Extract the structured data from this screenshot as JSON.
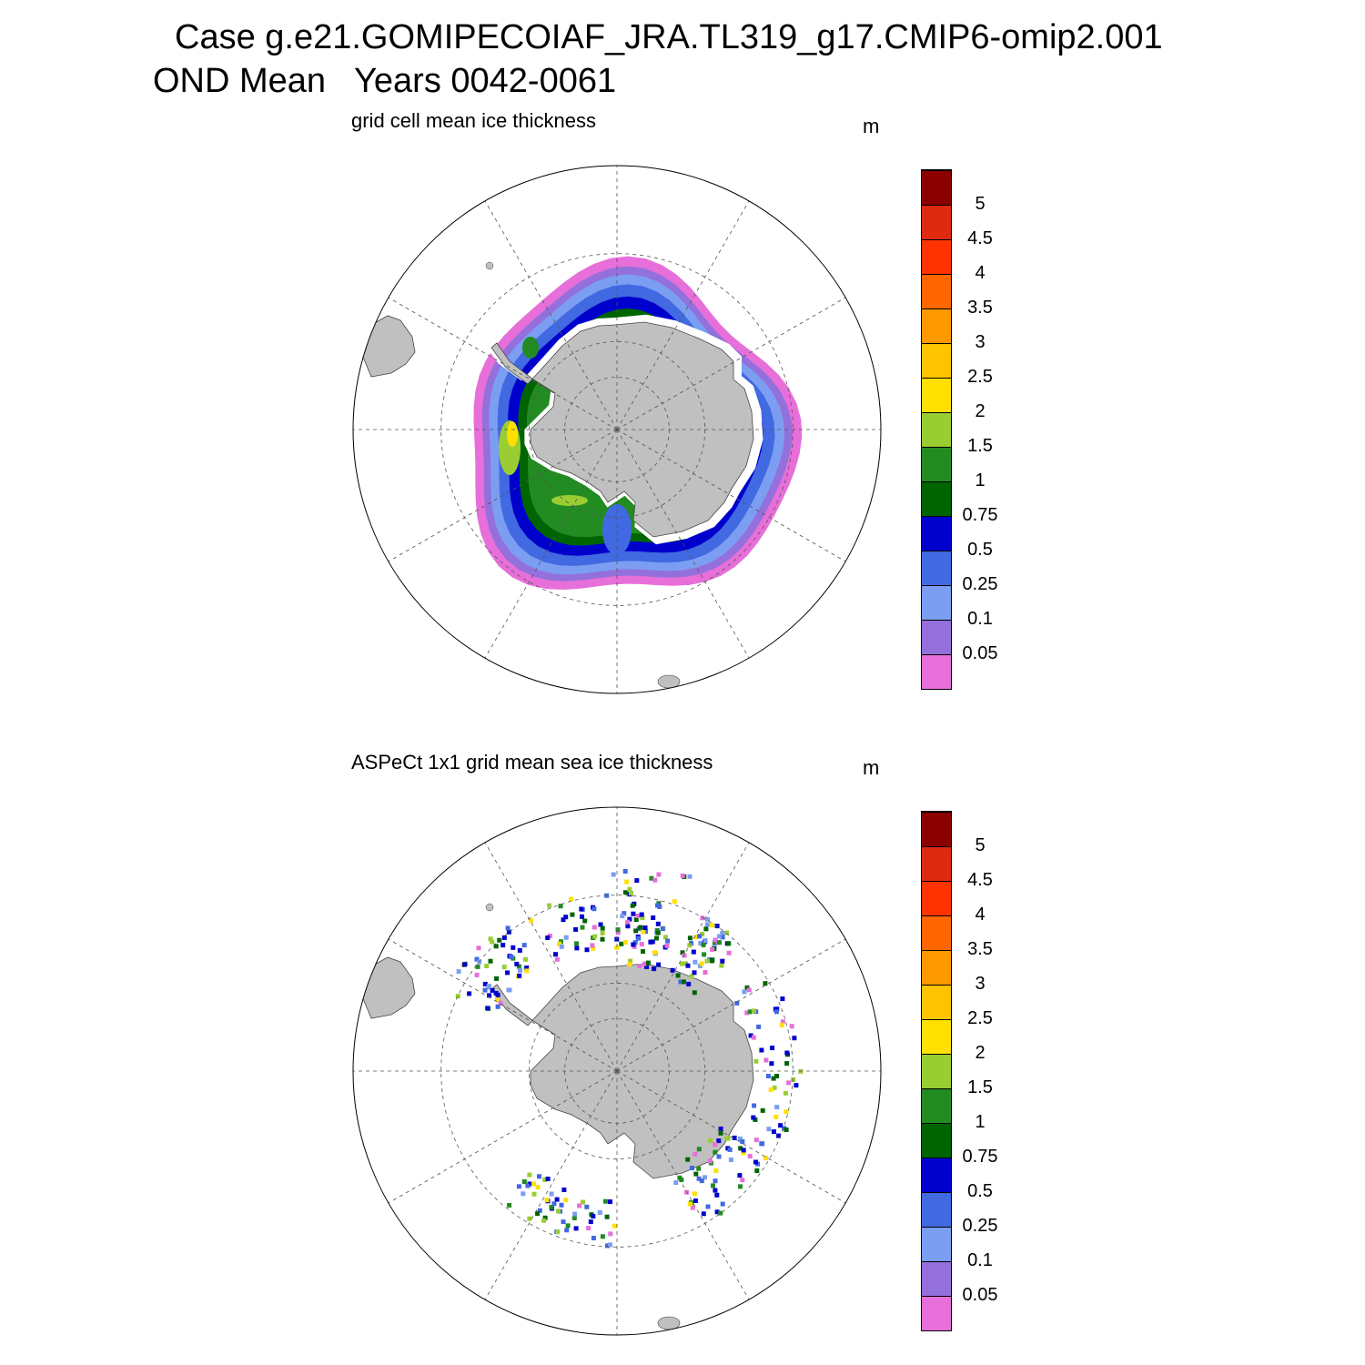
{
  "title": {
    "line1": "Case g.e21.GOMIPECOIAF_JRA.TL319_g17.CMIP6-omip2.001",
    "line2": "OND Mean   Years 0042-0061"
  },
  "colors": {
    "land": "#c0c0c0",
    "levels": [
      "#e76fd9",
      "#9370db",
      "#7b9ef2",
      "#4169e1",
      "#0000cd",
      "#006400",
      "#228b22",
      "#9acd32",
      "#ffe000",
      "#ffc400",
      "#ff9900",
      "#ff6600",
      "#ff3300",
      "#dd2a10",
      "#8b0000"
    ]
  },
  "panels": [
    {
      "id": "model",
      "title": "grid cell mean ice thickness",
      "units": "m",
      "colorbar_labels": [
        "5",
        "4.5",
        "4",
        "3.5",
        "3",
        "2.5",
        "2",
        "1.5",
        "1",
        "0.75",
        "0.5",
        "0.25",
        "0.1",
        "0.05"
      ]
    },
    {
      "id": "aspect",
      "title": "ASPeCt 1x1 grid mean sea ice thickness",
      "units": "m",
      "colorbar_labels": [
        "5",
        "4.5",
        "4",
        "3.5",
        "3",
        "2.5",
        "2",
        "1.5",
        "1",
        "0.75",
        "0.5",
        "0.25",
        "0.1",
        "0.05"
      ]
    }
  ],
  "map": {
    "projection": "south-polar-stereographic",
    "outer_latitude": "-50",
    "dashed_latitude_circles": [
      "-60",
      "-70",
      "-80"
    ],
    "meridian_spacing_deg": 30
  }
}
